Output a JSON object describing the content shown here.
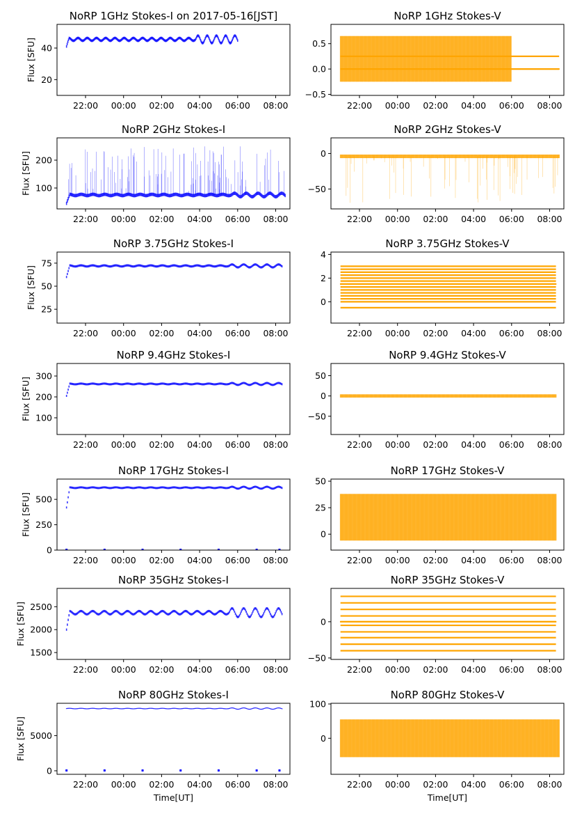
{
  "colors": {
    "stokes_i": "#0000ff",
    "stokes_v": "#ffa500",
    "axes": "#000000",
    "background": "#ffffff"
  },
  "time_ticks": [
    "22:00",
    "00:00",
    "02:00",
    "04:00",
    "06:00",
    "08:00"
  ],
  "xlabel": "Time[UT]",
  "chart_data": [
    {
      "type": "scatter",
      "title": "NoRP 1GHz Stokes-I on 2017-05-16[JST]",
      "ylabel": "Flux [SFU]",
      "xlabel": "",
      "series": [
        {
          "name": "",
          "color": "#0000ff"
        }
      ],
      "x_range_hours": [
        20.5,
        32.75
      ],
      "data_x_range": [
        "21:00",
        "06:00"
      ],
      "ylim": [
        10,
        55
      ],
      "yticks": [
        20,
        40
      ],
      "yticklabels": [
        "20",
        "40"
      ],
      "level": 45.5,
      "start_level": 41,
      "noise": 0.8,
      "wiggle": 1.5,
      "spikes": 0,
      "extra_lines": [],
      "grid": false
    },
    {
      "type": "scatter",
      "title": "NoRP 1GHz Stokes-V",
      "ylabel": "",
      "xlabel": "",
      "series": [
        {
          "name": "",
          "color": "#ffa500"
        }
      ],
      "x_range_hours": [
        20.5,
        32.75
      ],
      "data_x_range": [
        "21:00",
        "08:30"
      ],
      "ylim": [
        -0.52,
        0.88
      ],
      "yticks": [
        -0.5,
        0.0,
        0.5
      ],
      "yticklabels": [
        "−0.5",
        "0.0",
        "0.5"
      ],
      "level": 0.2,
      "noise": 0.45,
      "cutoff": "06:00",
      "after_level": 0.0,
      "spikes": 0,
      "extra_lines": [
        0.0,
        0.25
      ],
      "grid": false
    },
    {
      "type": "scatter",
      "title": "NoRP 2GHz Stokes-I",
      "ylabel": "Flux [SFU]",
      "xlabel": "",
      "series": [
        {
          "name": "",
          "color": "#0000ff"
        }
      ],
      "x_range_hours": [
        20.5,
        32.75
      ],
      "data_x_range": [
        "21:00",
        "08:30"
      ],
      "ylim": [
        25,
        280
      ],
      "yticks": [
        100,
        200
      ],
      "yticklabels": [
        "100",
        "200"
      ],
      "level": 75,
      "start_level": 45,
      "noise": 6,
      "wiggle": 4,
      "spikes": 120,
      "spike_max": 250,
      "extra_lines": [],
      "grid": false
    },
    {
      "type": "scatter",
      "title": "NoRP 2GHz Stokes-V",
      "ylabel": "",
      "xlabel": "",
      "series": [
        {
          "name": "",
          "color": "#ffa500"
        }
      ],
      "x_range_hours": [
        20.5,
        32.75
      ],
      "data_x_range": [
        "21:00",
        "08:30"
      ],
      "ylim": [
        -78,
        22
      ],
      "yticks": [
        -50,
        0
      ],
      "yticklabels": [
        "−50",
        "0"
      ],
      "level": -4,
      "noise": 2.5,
      "spikes": 60,
      "spike_max": -70,
      "extra_lines": [],
      "grid": false
    },
    {
      "type": "scatter",
      "title": "NoRP 3.75GHz Stokes-I",
      "ylabel": "Flux [SFU]",
      "xlabel": "",
      "series": [
        {
          "name": "",
          "color": "#0000ff"
        }
      ],
      "x_range_hours": [
        20.5,
        32.75
      ],
      "data_x_range": [
        "21:00",
        "08:20"
      ],
      "ylim": [
        10,
        87
      ],
      "yticks": [
        25,
        50,
        75
      ],
      "yticklabels": [
        "25",
        "50",
        "75"
      ],
      "level": 72,
      "start_level": 60,
      "noise": 1.2,
      "wiggle": 1,
      "spikes": 0,
      "extra_lines": [],
      "grid": false
    },
    {
      "type": "scatter",
      "title": "NoRP 3.75GHz Stokes-V",
      "ylabel": "",
      "xlabel": "",
      "series": [
        {
          "name": "",
          "color": "#ffa500"
        }
      ],
      "x_range_hours": [
        20.5,
        32.75
      ],
      "data_x_range": [
        "21:00",
        "08:20"
      ],
      "ylim": [
        -1.8,
        4.2
      ],
      "yticks": [
        0,
        2,
        4
      ],
      "yticklabels": [
        "0",
        "2",
        "4"
      ],
      "level": 1.5,
      "noise": 0,
      "spikes": 0,
      "extra_lines": [
        -0.5,
        0,
        0.25,
        0.5,
        0.75,
        1,
        1.25,
        1.5,
        1.75,
        2,
        2.25,
        2.5,
        2.75,
        3
      ],
      "grid": false
    },
    {
      "type": "scatter",
      "title": "NoRP 9.4GHz Stokes-I",
      "ylabel": "Flux [SFU]",
      "xlabel": "",
      "series": [
        {
          "name": "",
          "color": "#0000ff"
        }
      ],
      "x_range_hours": [
        20.5,
        32.75
      ],
      "data_x_range": [
        "21:00",
        "08:20"
      ],
      "ylim": [
        20,
        360
      ],
      "yticks": [
        100,
        200,
        300
      ],
      "yticklabels": [
        "100",
        "200",
        "300"
      ],
      "level": 262,
      "start_level": 205,
      "noise": 5,
      "wiggle": 3,
      "spikes": 0,
      "extra_lines": [],
      "grid": false
    },
    {
      "type": "scatter",
      "title": "NoRP 9.4GHz Stokes-V",
      "ylabel": "",
      "xlabel": "",
      "series": [
        {
          "name": "",
          "color": "#ffa500"
        }
      ],
      "x_range_hours": [
        20.5,
        32.75
      ],
      "data_x_range": [
        "21:00",
        "08:20"
      ],
      "ylim": [
        -95,
        80
      ],
      "yticks": [
        -50,
        0,
        50
      ],
      "yticklabels": [
        "−50",
        "0",
        "50"
      ],
      "level": 0,
      "noise": 4,
      "spikes": 0,
      "extra_lines": [],
      "grid": false
    },
    {
      "type": "scatter",
      "title": "NoRP 17GHz Stokes-I",
      "ylabel": "Flux [SFU]",
      "xlabel": "",
      "series": [
        {
          "name": "",
          "color": "#0000ff"
        }
      ],
      "x_range_hours": [
        20.5,
        32.75
      ],
      "data_x_range": [
        "21:00",
        "08:20"
      ],
      "ylim": [
        0,
        700
      ],
      "yticks": [
        0,
        250,
        500
      ],
      "yticklabels": [
        "0",
        "250",
        "500"
      ],
      "level": 615,
      "start_level": 420,
      "noise": 10,
      "wiggle": 6,
      "spikes": 0,
      "extra_lines": [],
      "dropouts": true,
      "grid": false
    },
    {
      "type": "scatter",
      "title": "NoRP 17GHz Stokes-V",
      "ylabel": "",
      "xlabel": "",
      "series": [
        {
          "name": "",
          "color": "#ffa500"
        }
      ],
      "x_range_hours": [
        20.5,
        32.75
      ],
      "data_x_range": [
        "21:00",
        "08:20"
      ],
      "ylim": [
        -15,
        52
      ],
      "yticks": [
        0,
        25,
        50
      ],
      "yticklabels": [
        "0",
        "25",
        "50"
      ],
      "level": 16,
      "noise": 22,
      "spikes": 0,
      "extra_lines": [],
      "grid": false
    },
    {
      "type": "scatter",
      "title": "NoRP 35GHz Stokes-I",
      "ylabel": "Flux [SFU]",
      "xlabel": "",
      "series": [
        {
          "name": "",
          "color": "#0000ff"
        }
      ],
      "x_range_hours": [
        20.5,
        32.75
      ],
      "data_x_range": [
        "21:00",
        "08:20"
      ],
      "ylim": [
        1350,
        2900
      ],
      "yticks": [
        1500,
        2000,
        2500
      ],
      "yticklabels": [
        "1500",
        "2000",
        "2500"
      ],
      "level": 2370,
      "start_level": 2000,
      "noise": 25,
      "wiggle": 60,
      "spikes": 0,
      "extra_lines": [],
      "grid": false
    },
    {
      "type": "scatter",
      "title": "NoRP 35GHz Stokes-V",
      "ylabel": "",
      "xlabel": "",
      "series": [
        {
          "name": "",
          "color": "#ffa500"
        }
      ],
      "x_range_hours": [
        20.5,
        32.75
      ],
      "data_x_range": [
        "21:00",
        "08:20"
      ],
      "ylim": [
        -52,
        46
      ],
      "yticks": [
        -50,
        0
      ],
      "yticklabels": [
        "−50",
        "0"
      ],
      "level": 0,
      "noise": 0,
      "spikes": 0,
      "extra_lines": [
        -40,
        -31,
        -22,
        -14,
        -5,
        0,
        8,
        17,
        26,
        35
      ],
      "grid": false
    },
    {
      "type": "scatter",
      "title": "NoRP 80GHz Stokes-I",
      "ylabel": "Flux [SFU]",
      "xlabel": "Time[UT]",
      "series": [
        {
          "name": "",
          "color": "#0000ff"
        }
      ],
      "x_range_hours": [
        20.5,
        32.75
      ],
      "data_x_range": [
        "21:00",
        "08:20"
      ],
      "ylim": [
        -500,
        9600
      ],
      "yticks": [
        0,
        5000
      ],
      "yticklabels": [
        "0",
        "5000"
      ],
      "level": 8850,
      "start_level": 8850,
      "noise": 60,
      "wiggle": 60,
      "spikes": 0,
      "extra_lines": [],
      "dropouts": true,
      "grid": false
    },
    {
      "type": "scatter",
      "title": "NoRP 80GHz Stokes-V",
      "ylabel": "",
      "xlabel": "Time[UT]",
      "series": [
        {
          "name": "",
          "color": "#ffa500"
        }
      ],
      "x_range_hours": [
        20.5,
        32.75
      ],
      "data_x_range": [
        "21:00",
        "08:30"
      ],
      "ylim": [
        -105,
        102
      ],
      "yticks": [
        0,
        100
      ],
      "yticklabels": [
        "0",
        "100"
      ],
      "level": 0,
      "noise": 55,
      "spikes": 0,
      "extra_lines": [],
      "grid": false
    }
  ]
}
